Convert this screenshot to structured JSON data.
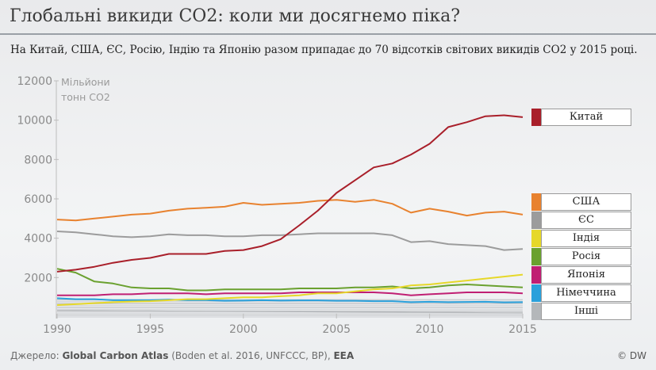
{
  "header": {
    "title": "Глобальні викиди CO2: коли ми досягнемо піка?",
    "subtitle": "На Китай, США, ЄС, Росію, Індію та Японію разом припадає до 70 відсотків світових викидів CO2 у 2015 році."
  },
  "footer": {
    "source_prefix": "Джерело: ",
    "source_name": "Global Carbon Atlas",
    "source_refs": " (Boden et al. 2016, UNFCCC, BP), ",
    "source_eea": "EEA",
    "credit": "© DW"
  },
  "chart_data": {
    "type": "line",
    "ylabel_line1": "Мільйони",
    "ylabel_line2": "тонн CO2",
    "ylim": [
      0,
      12000
    ],
    "yticks": [
      "12000",
      "10000",
      "8000",
      "6000",
      "4000",
      "2000"
    ],
    "xticks": [
      "1990",
      "1995",
      "2000",
      "2005",
      "2010",
      "2015"
    ],
    "x": [
      1990,
      1991,
      1992,
      1993,
      1994,
      1995,
      1996,
      1997,
      1998,
      1999,
      2000,
      2001,
      2002,
      2003,
      2004,
      2005,
      2006,
      2007,
      2008,
      2009,
      2010,
      2011,
      2012,
      2013,
      2014,
      2015
    ],
    "series": [
      {
        "name": "Китай",
        "color": "#a91f2a",
        "values": [
          2300,
          2400,
          2550,
          2750,
          2900,
          3000,
          3200,
          3200,
          3200,
          3350,
          3400,
          3600,
          3950,
          4650,
          5400,
          6300,
          6950,
          7600,
          7800,
          8250,
          8800,
          9650,
          9900,
          10200,
          10250,
          10150
        ]
      },
      {
        "name": "США",
        "color": "#e8822f",
        "values": [
          4950,
          4900,
          5000,
          5100,
          5200,
          5250,
          5400,
          5500,
          5550,
          5600,
          5800,
          5700,
          5750,
          5800,
          5900,
          5950,
          5850,
          5950,
          5750,
          5300,
          5500,
          5350,
          5150,
          5300,
          5350,
          5200
        ]
      },
      {
        "name": "ЄС",
        "color": "#9c9c9c",
        "values": [
          4350,
          4300,
          4200,
          4100,
          4050,
          4100,
          4200,
          4150,
          4150,
          4100,
          4100,
          4150,
          4150,
          4200,
          4250,
          4250,
          4250,
          4250,
          4150,
          3800,
          3850,
          3700,
          3650,
          3600,
          3400,
          3450
        ]
      },
      {
        "name": "Індія",
        "color": "#e6d829",
        "values": [
          600,
          650,
          700,
          750,
          780,
          800,
          850,
          900,
          900,
          950,
          1000,
          1000,
          1050,
          1100,
          1200,
          1200,
          1300,
          1400,
          1450,
          1600,
          1650,
          1750,
          1850,
          1950,
          2050,
          2150
        ]
      },
      {
        "name": "Росія",
        "color": "#6aa12f",
        "values": [
          2450,
          2250,
          1800,
          1700,
          1500,
          1450,
          1450,
          1350,
          1350,
          1400,
          1400,
          1400,
          1400,
          1450,
          1450,
          1450,
          1500,
          1500,
          1550,
          1450,
          1500,
          1600,
          1650,
          1600,
          1550,
          1500
        ]
      },
      {
        "name": "Японія",
        "color": "#c01f73",
        "values": [
          1100,
          1100,
          1100,
          1150,
          1150,
          1200,
          1200,
          1200,
          1150,
          1200,
          1200,
          1200,
          1200,
          1250,
          1250,
          1250,
          1250,
          1250,
          1200,
          1100,
          1150,
          1200,
          1250,
          1250,
          1250,
          1200
        ]
      },
      {
        "name": "Німеччина",
        "color": "#2aa0db",
        "values": [
          950,
          900,
          900,
          850,
          850,
          850,
          880,
          850,
          850,
          820,
          830,
          850,
          830,
          840,
          840,
          820,
          820,
          800,
          800,
          750,
          770,
          750,
          760,
          770,
          740,
          750
        ]
      },
      {
        "name": "Інші",
        "color": "#b4b7ba",
        "values": [
          330,
          325,
          320,
          315,
          310,
          305,
          300,
          295,
          290,
          285,
          280,
          275,
          270,
          265,
          260,
          255,
          250,
          245,
          240,
          235,
          230,
          225,
          220,
          215,
          210,
          205
        ]
      }
    ],
    "grid": false,
    "legend_position": "right"
  }
}
